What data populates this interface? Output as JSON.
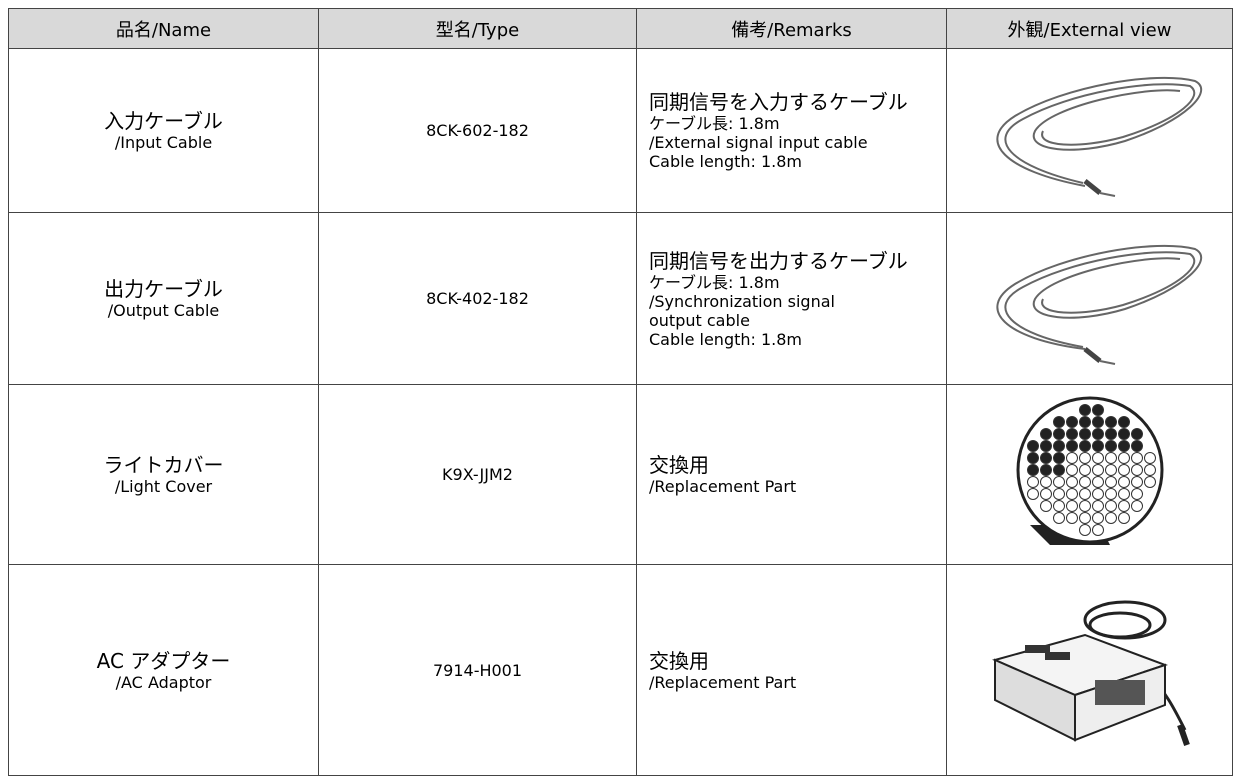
{
  "table": {
    "header": [
      "品名/Name",
      "型名/Type",
      "備考/Remarks",
      "外観/External view"
    ],
    "rows": [
      {
        "name": [
          "入力ケーブル",
          "/Input Cable"
        ],
        "type": "8CK-602-182",
        "remarks": [
          "同期信号を入力するケーブル",
          "ケーブル長: 1.8m",
          "/External signal input cable",
          "Cable length: 1.8m"
        ]
      },
      {
        "name": [
          "出力ケーブル",
          "/Output Cable"
        ],
        "type": "8CK-402-182",
        "remarks": [
          "同期信号を出力するケーブル",
          "ケーブル長: 1.8m",
          "/Synchronization signal",
          "output cable",
          "Cable length: 1.8m"
        ]
      },
      {
        "name": [
          "ライトカバー",
          "/Light Cover"
        ],
        "type": "K9X-JJM2",
        "remarks": [
          "交換用",
          "/Replacement Part"
        ]
      },
      {
        "name": [
          "AC アダプター",
          "/AC Adaptor"
        ],
        "type": "7914-H001",
        "remarks": [
          "交換用",
          "/Replacement Part"
        ]
      }
    ]
  }
}
